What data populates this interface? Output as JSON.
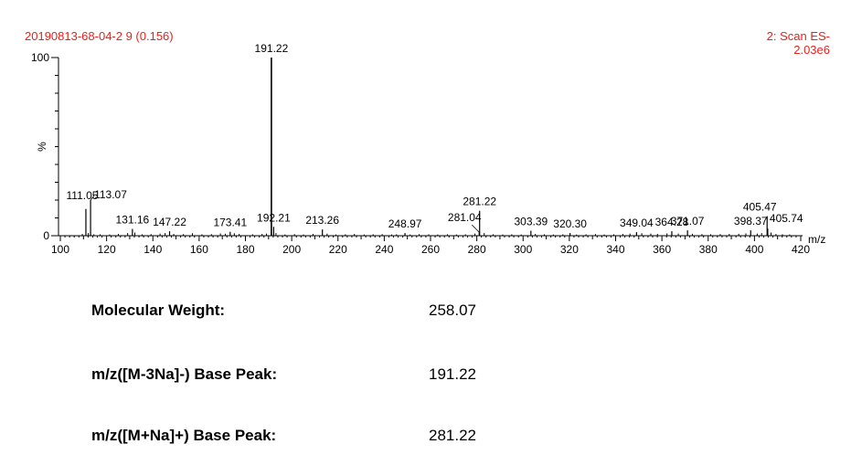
{
  "header": {
    "sample_id": "20190813-68-04-2 9 (0.156)",
    "scan_mode": "2: Scan ES-",
    "intensity": "2.03e6"
  },
  "chart_data": {
    "type": "bar",
    "title": "20190813-68-04-2 9 (0.156)",
    "xlabel": "m/z",
    "ylabel": "%",
    "xlim": [
      100,
      420
    ],
    "ylim": [
      0,
      100
    ],
    "x_ticks": [
      100,
      120,
      140,
      160,
      180,
      200,
      220,
      240,
      260,
      280,
      300,
      320,
      340,
      360,
      380,
      400,
      420
    ],
    "y_ticks": [
      0,
      100
    ],
    "colors": {
      "peaks": "#000000",
      "header_text": "#e8211c",
      "labels": "#000000"
    },
    "peaks": [
      {
        "mz": 111.05,
        "rel": 15.0,
        "label": "111.05"
      },
      {
        "mz": 113.07,
        "rel": 20.0,
        "label": "113.07"
      },
      {
        "mz": 131.16,
        "rel": 3.8,
        "label": "131.16"
      },
      {
        "mz": 147.22,
        "rel": 2.5,
        "label": "147.22"
      },
      {
        "mz": 173.41,
        "rel": 2.2,
        "label": "173.41"
      },
      {
        "mz": 191.22,
        "rel": 100,
        "label": "191.22"
      },
      {
        "mz": 192.21,
        "rel": 5.0,
        "label": "192.21"
      },
      {
        "mz": 213.26,
        "rel": 3.5,
        "label": "213.26"
      },
      {
        "mz": 248.97,
        "rel": 1.5,
        "label": "248.97"
      },
      {
        "mz": 281.04,
        "rel": 2.0,
        "label": "281.04"
      },
      {
        "mz": 281.22,
        "rel": 14.0,
        "label": "281.22"
      },
      {
        "mz": 303.39,
        "rel": 2.8,
        "label": "303.39"
      },
      {
        "mz": 320.3,
        "rel": 1.5,
        "label": "320.30"
      },
      {
        "mz": 349.04,
        "rel": 2.0,
        "label": "349.04"
      },
      {
        "mz": 364.28,
        "rel": 2.5,
        "label": "364.28"
      },
      {
        "mz": 371.07,
        "rel": 3.0,
        "label": "371.07"
      },
      {
        "mz": 398.37,
        "rel": 3.0,
        "label": "398.37"
      },
      {
        "mz": 405.47,
        "rel": 11.0,
        "label": "405.47"
      },
      {
        "mz": 405.74,
        "rel": 4.0,
        "label": "405.74"
      }
    ],
    "minor_peaks": [
      {
        "mz": 109.5,
        "rel": 1.0
      },
      {
        "mz": 112.1,
        "rel": 1.5
      },
      {
        "mz": 114.5,
        "rel": 0.8
      },
      {
        "mz": 117.2,
        "rel": 0.8
      },
      {
        "mz": 121.3,
        "rel": 0.7
      },
      {
        "mz": 125.1,
        "rel": 1.0
      },
      {
        "mz": 129.1,
        "rel": 1.5
      },
      {
        "mz": 132.2,
        "rel": 1.8
      },
      {
        "mz": 135.4,
        "rel": 0.8
      },
      {
        "mz": 139.2,
        "rel": 0.9
      },
      {
        "mz": 143.1,
        "rel": 1.2
      },
      {
        "mz": 145.3,
        "rel": 1.5
      },
      {
        "mz": 149.0,
        "rel": 1.0
      },
      {
        "mz": 153.2,
        "rel": 0.9
      },
      {
        "mz": 157.1,
        "rel": 1.4
      },
      {
        "mz": 161.2,
        "rel": 0.8
      },
      {
        "mz": 165.3,
        "rel": 0.9
      },
      {
        "mz": 169.2,
        "rel": 1.3
      },
      {
        "mz": 171.3,
        "rel": 1.1
      },
      {
        "mz": 175.2,
        "rel": 1.4
      },
      {
        "mz": 177.3,
        "rel": 1.0
      },
      {
        "mz": 183.1,
        "rel": 0.8
      },
      {
        "mz": 187.2,
        "rel": 1.0
      },
      {
        "mz": 189.1,
        "rel": 1.2
      },
      {
        "mz": 193.2,
        "rel": 1.5
      },
      {
        "mz": 197.1,
        "rel": 0.7
      },
      {
        "mz": 201.2,
        "rel": 0.9
      },
      {
        "mz": 205.1,
        "rel": 0.7
      },
      {
        "mz": 209.2,
        "rel": 1.0
      },
      {
        "mz": 215.3,
        "rel": 1.2
      },
      {
        "mz": 219.1,
        "rel": 0.7
      },
      {
        "mz": 223.2,
        "rel": 0.8
      },
      {
        "mz": 227.1,
        "rel": 1.0
      },
      {
        "mz": 231.3,
        "rel": 0.7
      },
      {
        "mz": 235.2,
        "rel": 0.8
      },
      {
        "mz": 239.1,
        "rel": 0.9
      },
      {
        "mz": 243.2,
        "rel": 0.7
      },
      {
        "mz": 245.3,
        "rel": 0.8
      },
      {
        "mz": 251.2,
        "rel": 0.7
      },
      {
        "mz": 255.1,
        "rel": 0.9
      },
      {
        "mz": 259.2,
        "rel": 0.8
      },
      {
        "mz": 263.1,
        "rel": 0.7
      },
      {
        "mz": 267.3,
        "rel": 0.8
      },
      {
        "mz": 271.2,
        "rel": 0.7
      },
      {
        "mz": 275.1,
        "rel": 0.8
      },
      {
        "mz": 279.2,
        "rel": 1.2
      },
      {
        "mz": 283.2,
        "rel": 1.5
      },
      {
        "mz": 287.1,
        "rel": 0.8
      },
      {
        "mz": 291.2,
        "rel": 0.7
      },
      {
        "mz": 295.1,
        "rel": 0.8
      },
      {
        "mz": 299.2,
        "rel": 0.7
      },
      {
        "mz": 305.3,
        "rel": 1.0
      },
      {
        "mz": 309.2,
        "rel": 0.8
      },
      {
        "mz": 313.1,
        "rel": 0.7
      },
      {
        "mz": 317.2,
        "rel": 0.8
      },
      {
        "mz": 323.1,
        "rel": 0.7
      },
      {
        "mz": 327.2,
        "rel": 0.8
      },
      {
        "mz": 331.3,
        "rel": 0.9
      },
      {
        "mz": 335.1,
        "rel": 0.7
      },
      {
        "mz": 339.2,
        "rel": 0.8
      },
      {
        "mz": 343.1,
        "rel": 1.0
      },
      {
        "mz": 346.2,
        "rel": 1.2
      },
      {
        "mz": 351.3,
        "rel": 1.4
      },
      {
        "mz": 355.2,
        "rel": 1.2
      },
      {
        "mz": 358.1,
        "rel": 1.0
      },
      {
        "mz": 362.2,
        "rel": 1.3
      },
      {
        "mz": 367.1,
        "rel": 1.2
      },
      {
        "mz": 373.2,
        "rel": 1.1
      },
      {
        "mz": 377.3,
        "rel": 0.9
      },
      {
        "mz": 381.1,
        "rel": 0.8
      },
      {
        "mz": 385.2,
        "rel": 0.9
      },
      {
        "mz": 389.1,
        "rel": 1.0
      },
      {
        "mz": 393.2,
        "rel": 1.1
      },
      {
        "mz": 396.3,
        "rel": 1.3
      },
      {
        "mz": 401.2,
        "rel": 1.2
      },
      {
        "mz": 403.1,
        "rel": 1.5
      },
      {
        "mz": 407.2,
        "rel": 1.8
      },
      {
        "mz": 409.3,
        "rel": 1.0
      },
      {
        "mz": 412.1,
        "rel": 0.8
      },
      {
        "mz": 415.2,
        "rel": 0.7
      }
    ]
  },
  "info": {
    "molecular_weight_label": "Molecular Weight:",
    "molecular_weight_value": "258.07",
    "neg_base_peak_label": "m/z([M-3Na]-) Base Peak:",
    "neg_base_peak_value": "191.22",
    "pos_base_peak_label": "m/z([M+Na]+) Base Peak:",
    "pos_base_peak_value": "281.22"
  }
}
